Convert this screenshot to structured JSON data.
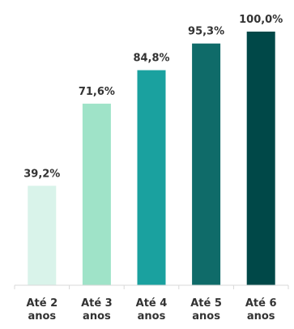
{
  "chart_data": {
    "type": "bar",
    "categories": [
      "Até 2 anos",
      "Até 3 anos",
      "Até 4 anos",
      "Até 5 anos",
      "Até 6 anos"
    ],
    "category_lines": [
      [
        "Até 2",
        "anos"
      ],
      [
        "Até 3",
        "anos"
      ],
      [
        "Até 4",
        "anos"
      ],
      [
        "Até 5",
        "anos"
      ],
      [
        "Até 6",
        "anos"
      ]
    ],
    "values": [
      39.2,
      71.6,
      84.8,
      95.3,
      100.0
    ],
    "value_labels": [
      "39,2%",
      "71,6%",
      "84,8%",
      "95,3%",
      "100,0%"
    ],
    "colors": [
      "#d9f3ea",
      "#9fe3c8",
      "#1aa19f",
      "#0f6b69",
      "#004848"
    ],
    "axis_color": "#d9d9d9",
    "text_color": "#333333",
    "title": "",
    "xlabel": "",
    "ylabel": "",
    "ylim": [
      0,
      100
    ],
    "grid": false,
    "legend": "none"
  }
}
